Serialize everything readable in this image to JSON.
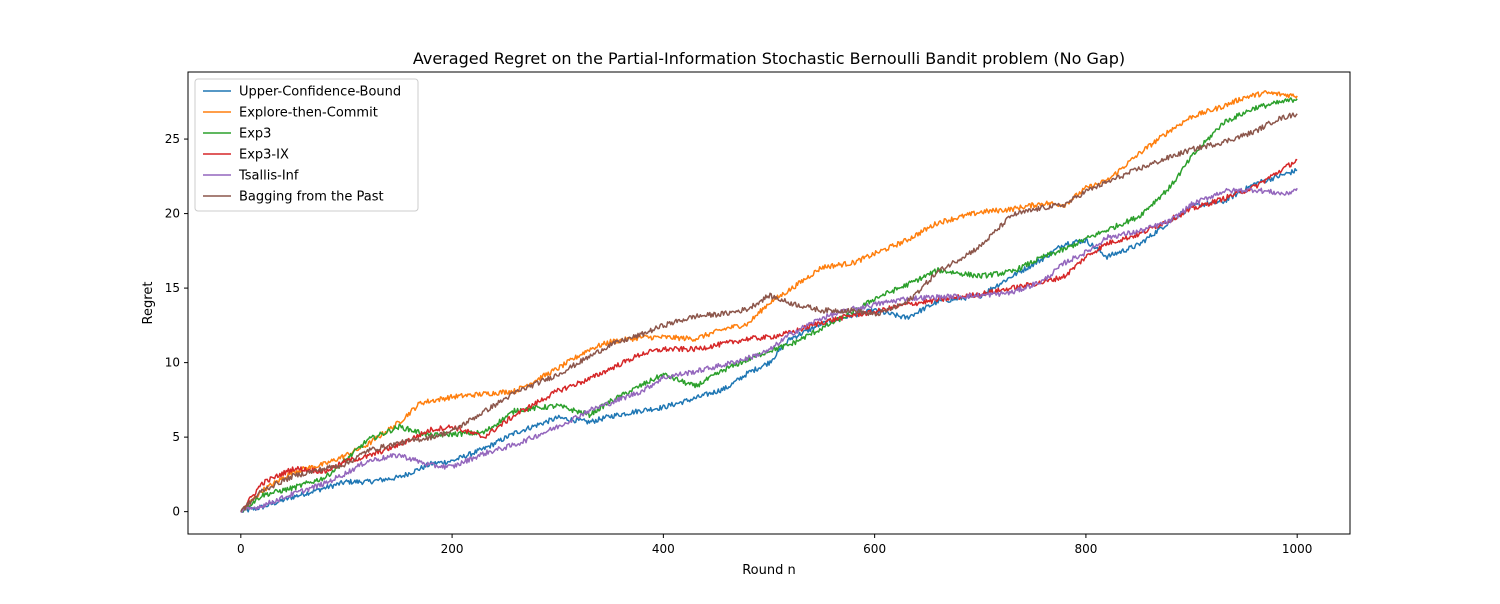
{
  "chart_data": {
    "type": "line",
    "title": "Averaged Regret on the Partial-Information Stochastic Bernoulli Bandit problem (No Gap)",
    "xlabel": "Round n",
    "ylabel": "Regret",
    "xlim": [
      -50,
      1050
    ],
    "ylim": [
      -1.5,
      29.5
    ],
    "xticks": [
      0,
      200,
      400,
      600,
      800,
      1000
    ],
    "yticks": [
      0,
      5,
      10,
      15,
      20,
      25
    ],
    "grid": false,
    "legend_position": "upper-left",
    "series": [
      {
        "name": "Upper-Confidence-Bound",
        "color": "#1f77b4",
        "x": [
          0,
          20,
          50,
          80,
          100,
          120,
          150,
          180,
          200,
          230,
          260,
          300,
          330,
          350,
          380,
          400,
          430,
          460,
          480,
          500,
          520,
          550,
          580,
          600,
          630,
          660,
          700,
          730,
          760,
          780,
          800,
          820,
          850,
          880,
          900,
          930,
          960,
          1000
        ],
        "y": [
          0,
          0.3,
          1.0,
          1.6,
          2.0,
          2.0,
          2.3,
          3.2,
          3.4,
          4.2,
          5.3,
          6.3,
          6.0,
          6.4,
          6.8,
          7.0,
          7.6,
          8.3,
          9.3,
          10.0,
          11.6,
          12.6,
          13.2,
          13.5,
          13.0,
          14.1,
          14.5,
          15.8,
          17.0,
          18.0,
          18.2,
          17.1,
          17.9,
          19.5,
          20.5,
          20.8,
          22.0,
          22.9
        ]
      },
      {
        "name": "Explore-then-Commit",
        "color": "#ff7f0e",
        "x": [
          0,
          20,
          50,
          80,
          100,
          120,
          150,
          170,
          200,
          230,
          260,
          300,
          330,
          350,
          380,
          400,
          430,
          460,
          480,
          500,
          520,
          550,
          580,
          600,
          630,
          660,
          700,
          730,
          760,
          780,
          800,
          820,
          850,
          880,
          900,
          930,
          950,
          970,
          1000
        ],
        "y": [
          0,
          1.4,
          2.7,
          3.2,
          3.8,
          4.5,
          6.0,
          7.3,
          7.7,
          7.9,
          8.1,
          9.6,
          10.9,
          11.4,
          11.7,
          11.7,
          11.6,
          12.3,
          12.6,
          14.0,
          14.9,
          16.4,
          16.7,
          17.3,
          18.2,
          19.4,
          20.1,
          20.3,
          20.7,
          20.6,
          21.7,
          22.2,
          24.0,
          25.6,
          26.5,
          27.2,
          27.8,
          28.1,
          27.9
        ]
      },
      {
        "name": "Exp3",
        "color": "#2ca02c",
        "x": [
          0,
          20,
          50,
          80,
          100,
          120,
          150,
          180,
          200,
          230,
          260,
          300,
          330,
          350,
          380,
          400,
          430,
          460,
          480,
          500,
          520,
          550,
          580,
          600,
          630,
          660,
          700,
          730,
          760,
          780,
          800,
          820,
          850,
          880,
          900,
          930,
          960,
          1000
        ],
        "y": [
          0,
          1.1,
          1.6,
          2.3,
          3.5,
          4.8,
          5.7,
          5.1,
          5.2,
          5.3,
          6.8,
          7.1,
          6.5,
          7.4,
          8.5,
          9.2,
          8.4,
          9.6,
          10.2,
          10.8,
          11.2,
          12.3,
          13.4,
          14.3,
          15.2,
          16.2,
          15.8,
          16.1,
          17.1,
          17.6,
          18.3,
          18.9,
          19.8,
          21.8,
          23.8,
          26.1,
          27.1,
          27.7
        ]
      },
      {
        "name": "Exp3-IX",
        "color": "#d62728",
        "x": [
          0,
          20,
          50,
          80,
          100,
          120,
          150,
          180,
          200,
          230,
          260,
          300,
          330,
          350,
          380,
          400,
          430,
          460,
          480,
          500,
          520,
          550,
          580,
          600,
          630,
          660,
          700,
          730,
          760,
          780,
          800,
          820,
          850,
          880,
          900,
          930,
          960,
          1000
        ],
        "y": [
          0,
          1.9,
          2.9,
          2.7,
          3.4,
          3.7,
          4.5,
          5.5,
          5.7,
          5.0,
          6.5,
          8.1,
          8.9,
          9.6,
          10.6,
          10.9,
          10.9,
          11.3,
          11.6,
          11.7,
          12.0,
          12.7,
          13.2,
          13.4,
          13.9,
          14.2,
          14.6,
          15.0,
          15.4,
          15.8,
          17.1,
          18.0,
          18.6,
          19.6,
          20.3,
          21.0,
          21.8,
          23.6
        ]
      },
      {
        "name": "Tsallis-Inf",
        "color": "#9467bd",
        "x": [
          0,
          20,
          50,
          80,
          100,
          120,
          150,
          180,
          200,
          230,
          260,
          300,
          330,
          350,
          380,
          400,
          430,
          460,
          480,
          500,
          520,
          550,
          580,
          600,
          630,
          660,
          700,
          730,
          760,
          780,
          800,
          820,
          850,
          880,
          900,
          930,
          960,
          990,
          1000
        ],
        "y": [
          0,
          0.4,
          1.2,
          1.9,
          2.6,
          3.4,
          3.8,
          3.1,
          3.0,
          3.9,
          4.5,
          5.7,
          6.8,
          7.3,
          8.1,
          9.0,
          9.4,
          9.9,
          10.3,
          10.8,
          11.9,
          13.0,
          13.6,
          13.9,
          14.3,
          14.4,
          14.5,
          14.7,
          15.5,
          16.7,
          17.4,
          18.4,
          18.8,
          19.5,
          20.6,
          21.5,
          21.6,
          21.3,
          21.7
        ]
      },
      {
        "name": "Bagging from the Past",
        "color": "#8c564b",
        "x": [
          0,
          20,
          50,
          80,
          100,
          120,
          150,
          180,
          200,
          230,
          260,
          300,
          330,
          350,
          380,
          400,
          430,
          460,
          480,
          500,
          520,
          550,
          580,
          600,
          630,
          660,
          700,
          730,
          760,
          780,
          800,
          820,
          850,
          880,
          900,
          930,
          960,
          980,
          1000
        ],
        "y": [
          0,
          1.4,
          2.4,
          2.9,
          3.2,
          4.1,
          4.6,
          5.0,
          5.4,
          6.7,
          8.0,
          9.2,
          10.4,
          11.2,
          11.9,
          12.5,
          13.1,
          13.3,
          13.6,
          14.5,
          14.0,
          13.5,
          13.5,
          13.2,
          14.0,
          16.1,
          17.8,
          19.9,
          20.4,
          20.6,
          21.5,
          22.1,
          23.0,
          23.8,
          24.3,
          24.8,
          25.5,
          26.3,
          26.7
        ]
      }
    ]
  }
}
